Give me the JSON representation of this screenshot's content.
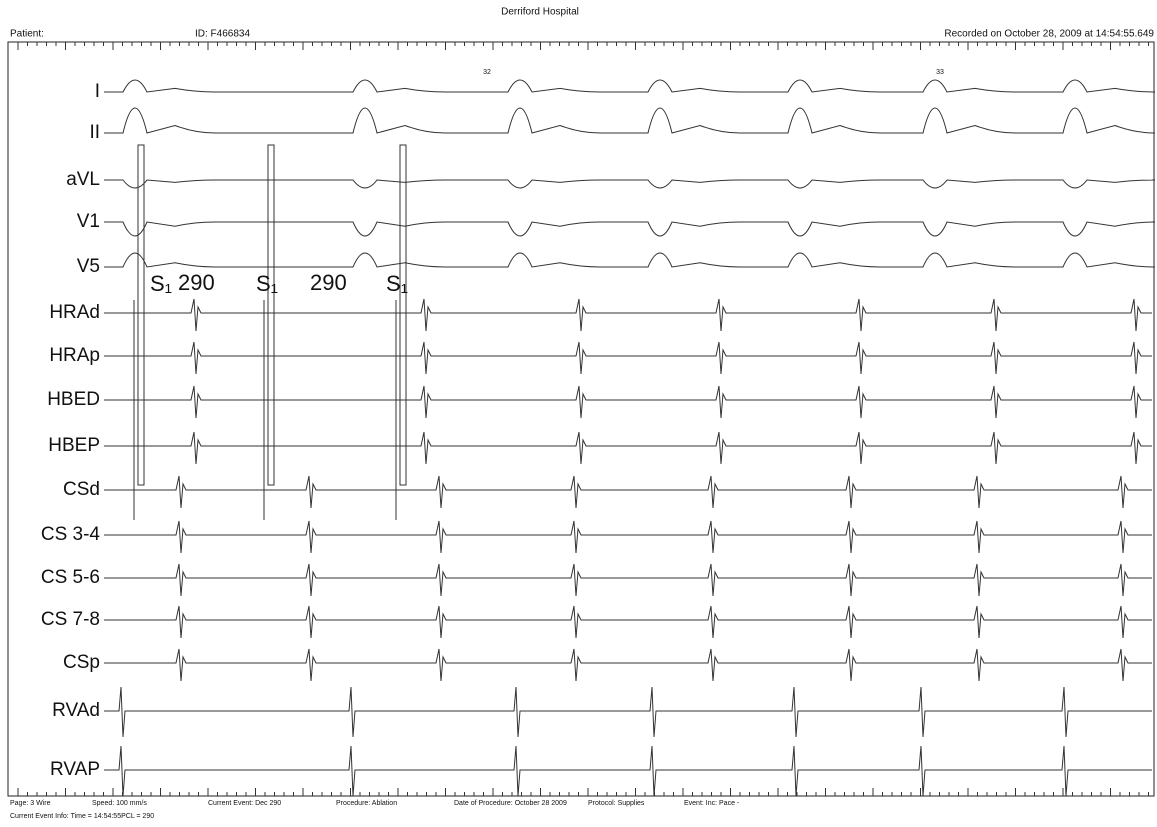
{
  "header": {
    "hospital": "Derriford Hospital",
    "patient": "Patient:",
    "id": "ID: F466834",
    "recorded": "Recorded on October 28, 2009 at 14:54:55.649"
  },
  "markers": [
    "32",
    "33"
  ],
  "channels": [
    "I",
    "II",
    "aVL",
    "V1",
    "V5",
    "HRAd",
    "HRAp",
    "HBED",
    "HBEP",
    "CSd",
    "CS 3-4",
    "CS 5-6",
    "CS 7-8",
    "CSp",
    "RVAd",
    "RVAP"
  ],
  "annotations": [
    "S₁",
    "290",
    "S₁",
    "290",
    "S₁"
  ],
  "footer": {
    "line1": [
      "Page: 3 Wire",
      "Speed: 100 mm/s",
      "Current Event: Dec 290",
      "Procedure: Ablation",
      "Date of Procedure: October 28 2009",
      "Protocol: Supplies",
      "Event: Inc: Pace -"
    ],
    "line2": "Current Event Info: Time = 14:54:55PCL = 290"
  }
}
